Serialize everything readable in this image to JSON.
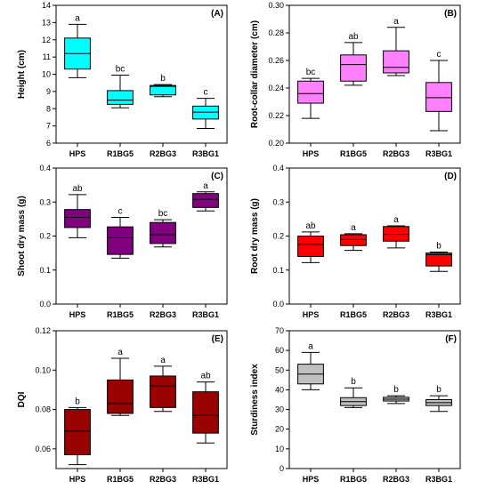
{
  "chart_data": [
    {
      "type": "box",
      "panel_label": "(A)",
      "ylabel": "Height (cm)",
      "ylim": [
        6,
        14
      ],
      "yticks": [
        "6",
        "7",
        "8",
        "9",
        "10",
        "11",
        "12",
        "13",
        "14"
      ],
      "categories": [
        "HPS",
        "R1BG5",
        "R2BG3",
        "R3BG1"
      ],
      "box_color": "#00ffff",
      "boxes": [
        {
          "min": 9.8,
          "q1": 10.3,
          "median": 11.2,
          "q3": 12.1,
          "max": 12.9,
          "letter": "a"
        },
        {
          "min": 8.05,
          "q1": 8.25,
          "median": 8.5,
          "q3": 9.05,
          "max": 9.95,
          "letter": "bc"
        },
        {
          "min": 8.7,
          "q1": 8.8,
          "median": 9.3,
          "q3": 9.35,
          "max": 9.4,
          "letter": "b"
        },
        {
          "min": 6.85,
          "q1": 7.4,
          "median": 7.8,
          "q3": 8.15,
          "max": 8.6,
          "letter": "c"
        }
      ]
    },
    {
      "type": "box",
      "panel_label": "(B)",
      "ylabel": "Root-collar diameter (cm)",
      "ylim": [
        0.2,
        0.3
      ],
      "yticks": [
        "0.20",
        "0.22",
        "0.24",
        "0.26",
        "0.28",
        "0.30"
      ],
      "categories": [
        "HPS",
        "R1BG5",
        "R2BG3",
        "R3BG1"
      ],
      "box_color": "#ff80ff",
      "boxes": [
        {
          "min": 0.218,
          "q1": 0.229,
          "median": 0.236,
          "q3": 0.245,
          "max": 0.247,
          "letter": "bc"
        },
        {
          "min": 0.242,
          "q1": 0.245,
          "median": 0.257,
          "q3": 0.264,
          "max": 0.273,
          "letter": "ab"
        },
        {
          "min": 0.249,
          "q1": 0.251,
          "median": 0.255,
          "q3": 0.267,
          "max": 0.284,
          "letter": "a"
        },
        {
          "min": 0.209,
          "q1": 0.223,
          "median": 0.233,
          "q3": 0.244,
          "max": 0.26,
          "letter": "c"
        }
      ]
    },
    {
      "type": "box",
      "panel_label": "(C)",
      "ylabel": "Shoot dry mass (g)",
      "ylim": [
        0.0,
        0.4
      ],
      "yticks": [
        "0.0",
        "0.1",
        "0.2",
        "0.3",
        "0.4"
      ],
      "categories": [
        "HPS",
        "R1BG5",
        "R2BG3",
        "R3BG1"
      ],
      "box_color": "#800080",
      "boxes": [
        {
          "min": 0.195,
          "q1": 0.225,
          "median": 0.255,
          "q3": 0.278,
          "max": 0.322,
          "letter": "ab"
        },
        {
          "min": 0.135,
          "q1": 0.146,
          "median": 0.195,
          "q3": 0.227,
          "max": 0.255,
          "letter": "c"
        },
        {
          "min": 0.168,
          "q1": 0.178,
          "median": 0.204,
          "q3": 0.24,
          "max": 0.248,
          "letter": "bc"
        },
        {
          "min": 0.274,
          "q1": 0.284,
          "median": 0.308,
          "q3": 0.325,
          "max": 0.33,
          "letter": "a"
        }
      ]
    },
    {
      "type": "box",
      "panel_label": "(D)",
      "ylabel": "Root dry mass (g)",
      "ylim": [
        0.0,
        0.4
      ],
      "yticks": [
        "0.0",
        "0.1",
        "0.2",
        "0.3",
        "0.4"
      ],
      "categories": [
        "HPS",
        "R1BG5",
        "R2BG3",
        "R3BG1"
      ],
      "box_color": "#ff0000",
      "boxes": [
        {
          "min": 0.122,
          "q1": 0.14,
          "median": 0.175,
          "q3": 0.2,
          "max": 0.212,
          "letter": "ab"
        },
        {
          "min": 0.158,
          "q1": 0.172,
          "median": 0.19,
          "q3": 0.204,
          "max": 0.207,
          "letter": "a"
        },
        {
          "min": 0.165,
          "q1": 0.185,
          "median": 0.205,
          "q3": 0.228,
          "max": 0.23,
          "letter": "a"
        },
        {
          "min": 0.096,
          "q1": 0.112,
          "median": 0.145,
          "q3": 0.15,
          "max": 0.153,
          "letter": "b"
        }
      ]
    },
    {
      "type": "box",
      "panel_label": "(E)",
      "ylabel": "DQI",
      "ylim": [
        0.05,
        0.12
      ],
      "yticks": [
        "0.06",
        "0.08",
        "0.10",
        "0.12"
      ],
      "categories": [
        "HPS",
        "R1BG5",
        "R2BG3",
        "R3BG1"
      ],
      "box_color": "#990000",
      "boxes": [
        {
          "min": 0.052,
          "q1": 0.057,
          "median": 0.069,
          "q3": 0.08,
          "max": 0.081,
          "letter": "b"
        },
        {
          "min": 0.077,
          "q1": 0.078,
          "median": 0.083,
          "q3": 0.095,
          "max": 0.106,
          "letter": "a"
        },
        {
          "min": 0.079,
          "q1": 0.081,
          "median": 0.092,
          "q3": 0.097,
          "max": 0.102,
          "letter": "a"
        },
        {
          "min": 0.063,
          "q1": 0.068,
          "median": 0.077,
          "q3": 0.089,
          "max": 0.094,
          "letter": "ab"
        }
      ]
    },
    {
      "type": "box",
      "panel_label": "(F)",
      "ylabel": "Sturdiness index",
      "ylim": [
        0,
        70
      ],
      "yticks": [
        "0",
        "10",
        "20",
        "30",
        "40",
        "50",
        "60",
        "70"
      ],
      "categories": [
        "HPS",
        "R1BG5",
        "R2BG3",
        "R3BG1"
      ],
      "box_color": "#c0c0c0",
      "boxes": [
        {
          "min": 40,
          "q1": 43,
          "median": 48,
          "q3": 53,
          "max": 59,
          "letter": "a"
        },
        {
          "min": 31,
          "q1": 32,
          "median": 34,
          "q3": 36,
          "max": 41,
          "letter": "b"
        },
        {
          "min": 33,
          "q1": 34.3,
          "median": 35.2,
          "q3": 36.2,
          "max": 37,
          "letter": "b"
        },
        {
          "min": 29,
          "q1": 32,
          "median": 33.5,
          "q3": 35,
          "max": 37,
          "letter": "b"
        }
      ]
    }
  ]
}
